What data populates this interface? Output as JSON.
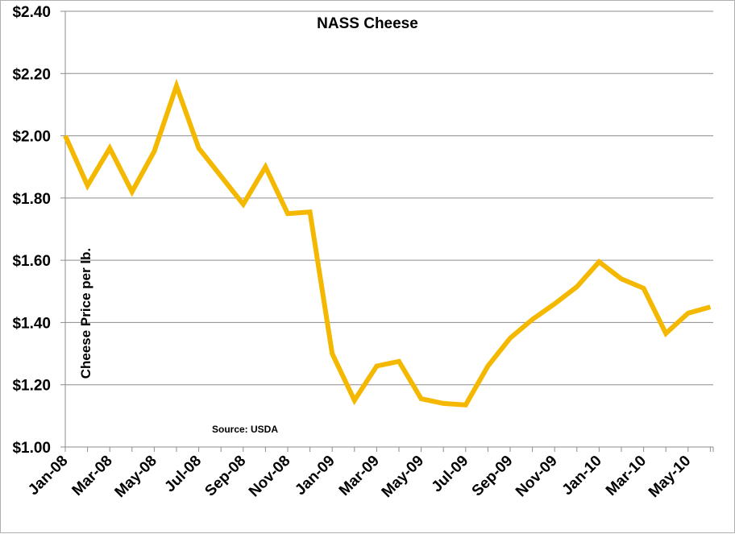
{
  "chart_data": {
    "type": "line",
    "title": "NASS Cheese",
    "ylabel": "Cheese Price per lb.",
    "xlabel": "",
    "annotation": "Source: USDA",
    "ylim": [
      1.0,
      2.4
    ],
    "y_ticks": [
      "$1.00",
      "$1.20",
      "$1.40",
      "$1.60",
      "$1.80",
      "$2.00",
      "$2.20",
      "$2.40"
    ],
    "y_tick_values": [
      1.0,
      1.2,
      1.4,
      1.6,
      1.8,
      2.0,
      2.2,
      2.4
    ],
    "x_tick_labels": [
      "Jan-08",
      "Mar-08",
      "May-08",
      "Jul-08",
      "Sep-08",
      "Nov-08",
      "Jan-09",
      "Mar-09",
      "May-09",
      "Jul-09",
      "Sep-09",
      "Nov-09",
      "Jan-10",
      "Mar-10",
      "May-10"
    ],
    "grid": true,
    "line_color": "#F5B800",
    "series": [
      {
        "x": [
          "Jan-08",
          "Feb-08",
          "Mar-08",
          "Apr-08",
          "May-08",
          "Jun-08",
          "Jul-08",
          "Aug-08",
          "Sep-08",
          "Oct-08",
          "Nov-08",
          "Dec-08",
          "Jan-09",
          "Feb-09",
          "Mar-09",
          "Apr-09",
          "May-09",
          "Jun-09",
          "Jul-09",
          "Aug-09",
          "Sep-09",
          "Oct-09",
          "Nov-09",
          "Dec-09",
          "Jan-10",
          "Feb-10",
          "Mar-10",
          "Apr-10",
          "May-10",
          "Jun-10"
        ],
        "values": [
          2.0,
          1.84,
          1.96,
          1.82,
          1.95,
          2.16,
          1.96,
          1.87,
          1.78,
          1.9,
          1.75,
          1.755,
          1.3,
          1.15,
          1.26,
          1.275,
          1.155,
          1.14,
          1.135,
          1.26,
          1.35,
          1.41,
          1.46,
          1.515,
          1.595,
          1.54,
          1.51,
          1.365,
          1.43,
          1.45
        ]
      }
    ]
  }
}
